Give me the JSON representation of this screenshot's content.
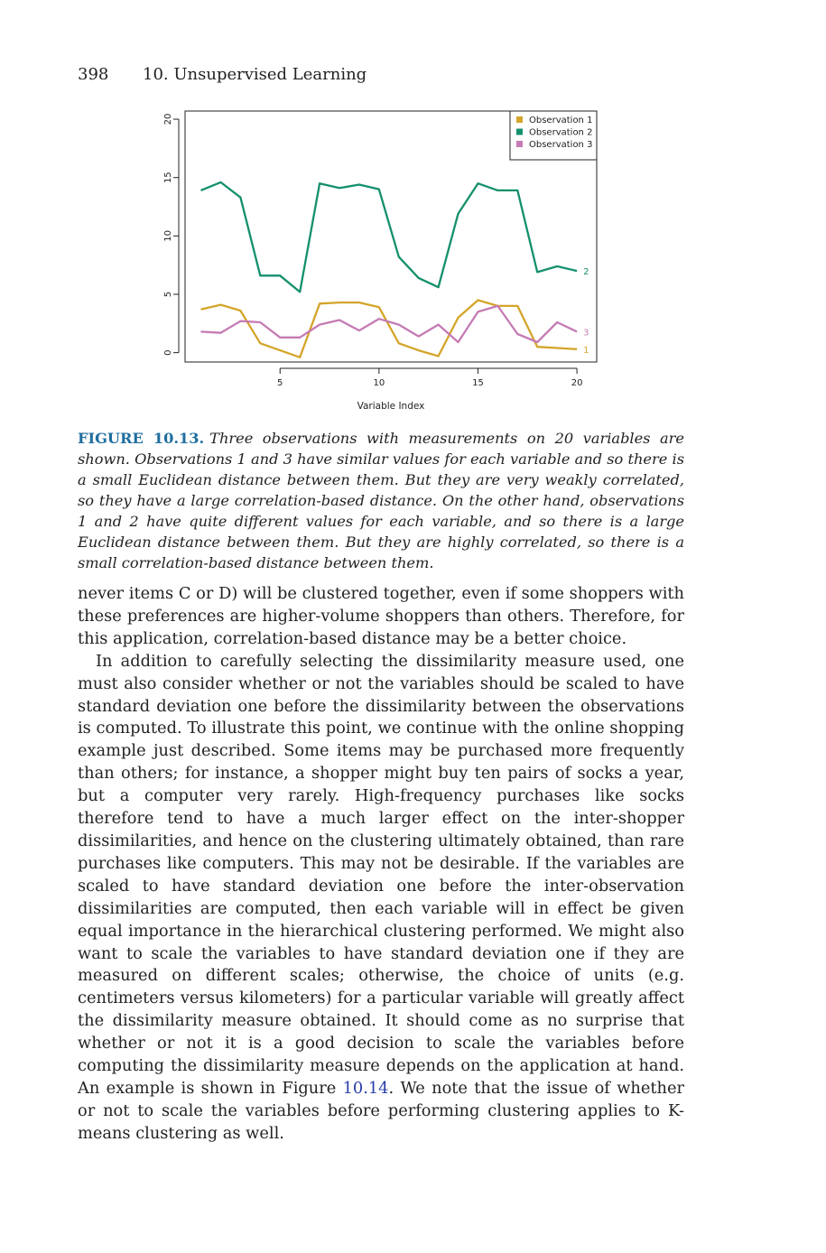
{
  "header": {
    "page_number": "398",
    "chapter_title": "10. Unsupervised Learning"
  },
  "figure": {
    "label": "FIGURE 10.13.",
    "caption": "Three observations with measurements on 20 variables are shown. Observations 1 and 3 have similar values for each variable and so there is a small Euclidean distance between them. But they are very weakly correlated, so they have a large correlation-based distance. On the other hand, observations 1 and 2 have quite different values for each variable, and so there is a large Euclidean distance between them. But they are highly correlated, so there is a small correlation-based distance between them."
  },
  "chart_data": {
    "type": "line",
    "xlabel": "Variable Index",
    "ylabel": "",
    "x": [
      1,
      2,
      3,
      4,
      5,
      6,
      7,
      8,
      9,
      10,
      11,
      12,
      13,
      14,
      15,
      16,
      17,
      18,
      19,
      20
    ],
    "xlim": [
      0.2,
      21
    ],
    "ylim": [
      -0.8,
      20.7
    ],
    "xticks": [
      5,
      10,
      15,
      20
    ],
    "yticks": [
      0,
      5,
      10,
      15,
      20
    ],
    "grid": false,
    "legend_position": "top-right",
    "series": [
      {
        "name": "Observation 1",
        "end_label": "1",
        "color": "#d4a52a",
        "values": [
          3.7,
          4.1,
          3.6,
          0.8,
          0.2,
          -0.4,
          4.2,
          4.3,
          4.3,
          3.9,
          0.8,
          0.2,
          -0.3,
          3.0,
          4.5,
          4.0,
          4.0,
          0.5,
          0.4,
          0.3
        ]
      },
      {
        "name": "Observation 2",
        "end_label": "2",
        "color": "#14906c",
        "values": [
          13.9,
          14.6,
          13.3,
          6.6,
          6.6,
          5.2,
          14.5,
          14.1,
          14.4,
          14.0,
          8.2,
          6.4,
          5.6,
          11.9,
          14.5,
          13.9,
          13.9,
          6.9,
          7.4,
          7.0
        ]
      },
      {
        "name": "Observation 3",
        "end_label": "3",
        "color": "#c57bb4",
        "values": [
          1.8,
          1.7,
          2.7,
          2.6,
          1.3,
          1.3,
          2.4,
          2.8,
          1.9,
          2.9,
          2.4,
          1.4,
          2.4,
          0.9,
          3.5,
          4.0,
          1.6,
          0.9,
          2.6,
          1.8
        ]
      }
    ]
  },
  "body": {
    "p1": "never items C or D) will be clustered together, even if some shoppers with these preferences are higher-volume shoppers than others. Therefore, for this application, correlation-based distance may be a better choice.",
    "p2_before": "In addition to carefully selecting the dissimilarity measure used, one must also consider whether or not the variables should be scaled to have standard deviation one before the dissimilarity between the observations is computed. To illustrate this point, we continue with the online shopping example just described. Some items may be purchased more frequently than others; for instance, a shopper might buy ten pairs of socks a year, but a computer very rarely. High-frequency purchases like socks therefore tend to have a much larger effect on the inter-shopper dissimilarities, and hence on the clustering ultimately obtained, than rare purchases like computers. This may not be desirable. If the variables are scaled to have standard deviation one before the inter-observation dissimilarities are computed, then each variable will in effect be given equal importance in the hierarchical clustering performed. We might also want to scale the variables to have standard deviation one if they are measured on different scales; otherwise, the choice of units (e.g. centimeters versus kilometers) for a particular variable will greatly affect the dissimilarity measure obtained. It should come as no surprise that whether or not it is a good decision to scale the variables before computing the dissimilarity measure depends on the application at hand. An example is shown in Figure",
    "p2_ref": "10.14",
    "p2_after": ". We note that the issue of whether or not to scale the variables before performing clustering applies to K-means clustering as well."
  }
}
